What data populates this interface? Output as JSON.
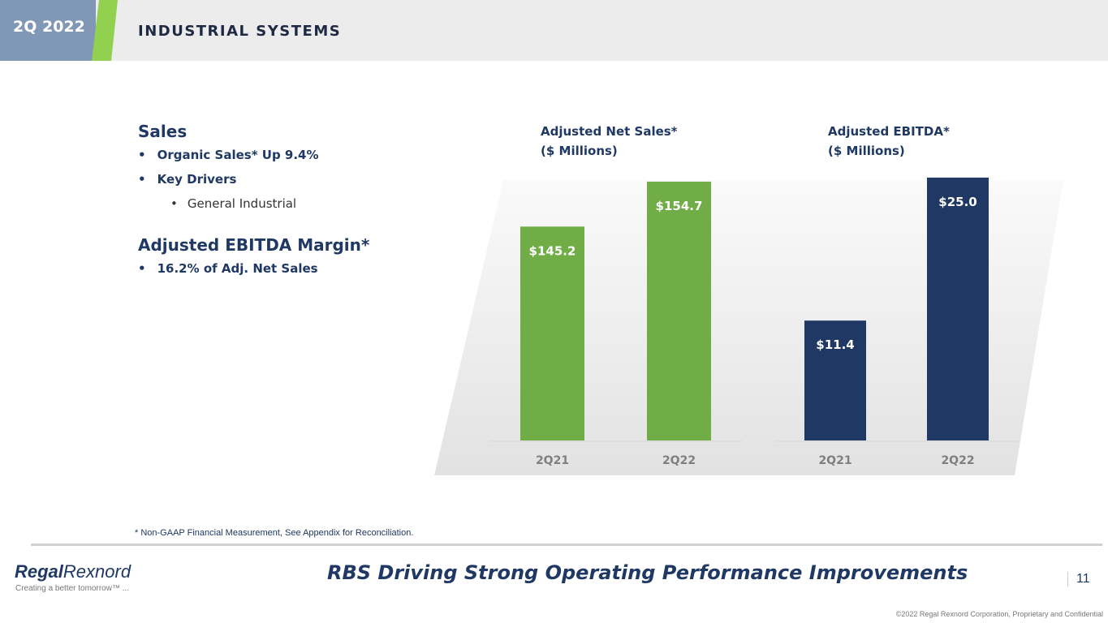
{
  "header": {
    "period": "2Q 2022",
    "title": "INDUSTRIAL SYSTEMS"
  },
  "left": {
    "sales_heading": "Sales",
    "bullets": [
      "Organic Sales* Up 9.4%",
      "Key Drivers"
    ],
    "sub_bullets": [
      "General Industrial"
    ],
    "margin_heading": "Adjusted EBITDA Margin*",
    "margin_bullets": [
      "16.2% of Adj. Net Sales"
    ]
  },
  "chart_data": [
    {
      "type": "bar",
      "title": "Adjusted Net Sales*",
      "subtitle": "($ Millions)",
      "categories": [
        "2Q21",
        "2Q22"
      ],
      "values": [
        145.2,
        154.7
      ],
      "data_labels": [
        "$145.2",
        "$154.7"
      ],
      "color": "#70ad47",
      "ylim": [
        100,
        160
      ],
      "grid": false
    },
    {
      "type": "bar",
      "title": "Adjusted EBITDA*",
      "subtitle": "($ Millions)",
      "categories": [
        "2Q21",
        "2Q22"
      ],
      "values": [
        11.4,
        25.0
      ],
      "data_labels": [
        "$11.4",
        "$25.0"
      ],
      "color": "#203864",
      "ylim": [
        0,
        27
      ],
      "grid": false
    }
  ],
  "footer": {
    "note": "* Non-GAAP Financial Measurement, See Appendix for Reconciliation.",
    "tagline": "RBS Driving Strong Operating Performance Improvements",
    "logo_a": "Regal",
    "logo_b": "Rexnord",
    "logo_tagline": "Creating a better tomorrow™ ...",
    "page": "11",
    "copyright": "©2022 Regal Rexnord Corporation, Proprietary and Confidential"
  }
}
